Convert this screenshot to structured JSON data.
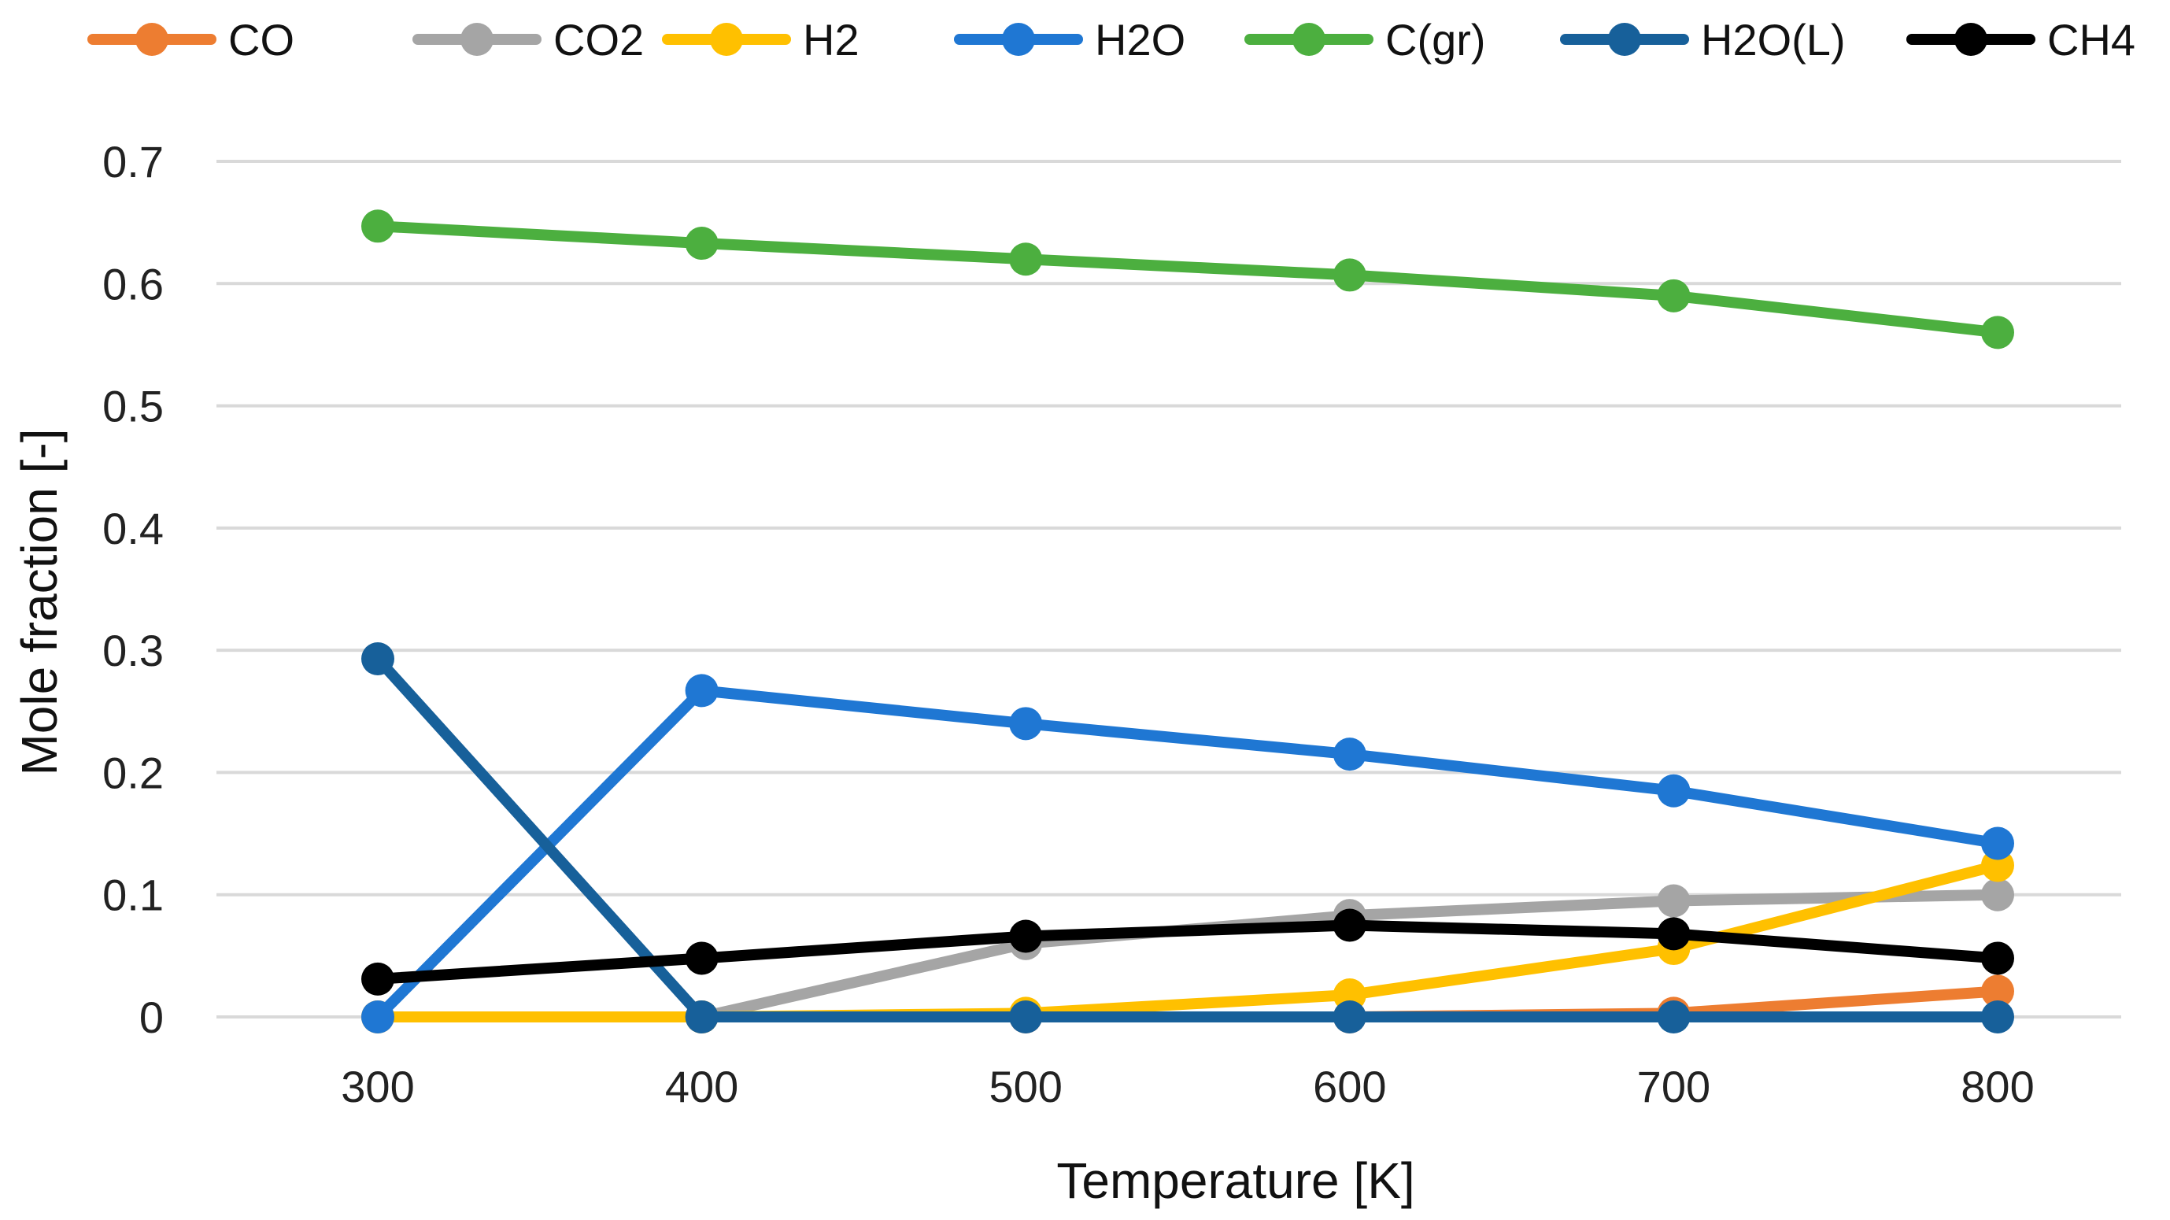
{
  "chart_data": {
    "type": "line",
    "title": "",
    "xlabel": "Temperature [K]",
    "ylabel": "Mole fraction [-]",
    "x": [
      300,
      400,
      500,
      600,
      700,
      800
    ],
    "x_tick_labels": [
      "300",
      "400",
      "500",
      "600",
      "700",
      "800"
    ],
    "y_tick_labels": [
      "0",
      "0.1",
      "0.2",
      "0.3",
      "0.4",
      "0.5",
      "0.6",
      "0.7"
    ],
    "y_ticks": [
      0,
      0.1,
      0.2,
      0.3,
      0.4,
      0.5,
      0.6,
      0.7
    ],
    "xlim": [
      300,
      800
    ],
    "ylim": [
      0,
      0.7
    ],
    "grid": true,
    "legend_position": "top",
    "series": [
      {
        "name": "CO",
        "color": "#ED7D31",
        "values": [
          0,
          0,
          0,
          0,
          0.003,
          0.021
        ]
      },
      {
        "name": "CO2",
        "color": "#A5A5A5",
        "values": [
          0,
          0,
          0.06,
          0.083,
          0.095,
          0.1
        ]
      },
      {
        "name": "H2",
        "color": "#FFC000",
        "values": [
          0,
          0,
          0.003,
          0.018,
          0.056,
          0.124
        ]
      },
      {
        "name": "H2O",
        "color": "#1F77D3",
        "values": [
          0,
          0.267,
          0.24,
          0.215,
          0.185,
          0.142
        ]
      },
      {
        "name": "C(gr)",
        "color": "#4CAF3F",
        "values": [
          0.647,
          0.633,
          0.62,
          0.607,
          0.59,
          0.56
        ]
      },
      {
        "name": "H2O(L)",
        "color": "#17609A",
        "values": [
          0.293,
          0,
          0,
          0,
          0,
          0
        ]
      },
      {
        "name": "CH4",
        "color": "#000000",
        "values": [
          0.031,
          0.048,
          0.066,
          0.075,
          0.068,
          0.048
        ]
      }
    ]
  }
}
